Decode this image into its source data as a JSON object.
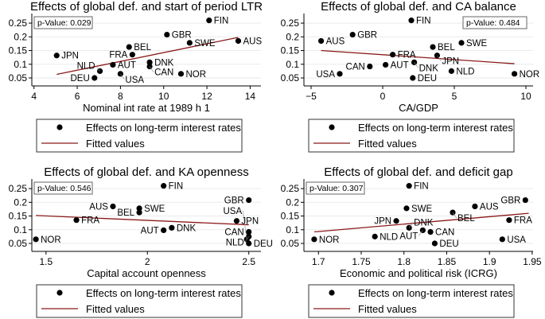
{
  "legend": {
    "points": "Effects on long-term interest rates",
    "line": "Fitted values"
  },
  "colors": {
    "points": "#000000",
    "fit": "#8b1a1a",
    "box": "#666666"
  },
  "chart_data": [
    {
      "type": "scatter",
      "title": "Effects of global def. and start of period LTR",
      "xlabel": "Nominal int rate at 1989 h 1",
      "pvalue": "p-Value: 0.029",
      "pbox": "left",
      "xlim": [
        3.9,
        14.5
      ],
      "xticks": [
        4,
        6,
        8,
        10,
        12,
        14
      ],
      "ylim": [
        0.021,
        0.285
      ],
      "yticks": [
        0.05,
        0.1,
        0.15,
        0.2,
        0.25
      ],
      "points": [
        [
          "FIN",
          12.1,
          0.26
        ],
        [
          "GBR",
          10.15,
          0.208
        ],
        [
          "AUS",
          13.45,
          0.185
        ],
        [
          "SWE",
          11.2,
          0.178
        ],
        [
          "BEL",
          8.4,
          0.163
        ],
        [
          "FRA",
          8.55,
          0.135
        ],
        [
          "JPN",
          5.05,
          0.132
        ],
        [
          "DNK",
          9.35,
          0.107
        ],
        [
          "AUT",
          7.65,
          0.098
        ],
        [
          "CAN",
          9.35,
          0.092
        ],
        [
          "NLD",
          7.05,
          0.075
        ],
        [
          "USA",
          8.0,
          0.065
        ],
        [
          "NOR",
          10.8,
          0.065
        ],
        [
          "DEU",
          6.8,
          0.05
        ]
      ],
      "fit": [
        [
          5.05,
          0.063
        ],
        [
          13.45,
          0.198
        ]
      ]
    },
    {
      "type": "scatter",
      "title": "Effects of global def. and CA balance",
      "xlabel": "CA/GDP",
      "pvalue": "p-Value: 0.484",
      "pbox": "right",
      "xlim": [
        -5.5,
        10.5
      ],
      "xticks": [
        -5,
        0,
        5,
        10
      ],
      "ylim": [
        0.021,
        0.285
      ],
      "yticks": [
        0.05,
        0.1,
        0.15,
        0.2,
        0.25
      ],
      "points": [
        [
          "FIN",
          2.0,
          0.26
        ],
        [
          "GBR",
          -2.1,
          0.208
        ],
        [
          "AUS",
          -4.3,
          0.185
        ],
        [
          "SWE",
          5.5,
          0.178
        ],
        [
          "BEL",
          3.5,
          0.163
        ],
        [
          "FRA",
          0.7,
          0.135
        ],
        [
          "JPN",
          3.8,
          0.132
        ],
        [
          "DNK",
          2.2,
          0.107
        ],
        [
          "AUT",
          0.2,
          0.098
        ],
        [
          "CAN",
          -0.9,
          0.092
        ],
        [
          "NLD",
          4.8,
          0.075
        ],
        [
          "USA",
          -3.0,
          0.065
        ],
        [
          "NOR",
          9.2,
          0.065
        ],
        [
          "DEU",
          2.1,
          0.05
        ]
      ],
      "fit": [
        [
          -4.3,
          0.15
        ],
        [
          9.2,
          0.102
        ]
      ]
    },
    {
      "type": "scatter",
      "title": "Effects of global def. and KA openness",
      "xlabel": "Capital account openness",
      "pvalue": "p-Value: 0.546",
      "pbox": "left",
      "xlim": [
        1.43,
        2.56
      ],
      "xticks": [
        1.5,
        2,
        2.5
      ],
      "ylim": [
        0.021,
        0.285
      ],
      "yticks": [
        0.05,
        0.1,
        0.15,
        0.2,
        0.25
      ],
      "points": [
        [
          "FIN",
          2.08,
          0.26
        ],
        [
          "GBR",
          2.5,
          0.208
        ],
        [
          "AUS",
          1.83,
          0.185
        ],
        [
          "SWE",
          1.96,
          0.178
        ],
        [
          "BEL",
          1.96,
          0.163
        ],
        [
          "FRA",
          1.65,
          0.135
        ],
        [
          "JPN",
          2.44,
          0.132
        ],
        [
          "DNK",
          2.12,
          0.107
        ],
        [
          "AUT",
          2.08,
          0.098
        ],
        [
          "CAN",
          2.5,
          0.092
        ],
        [
          "NLD",
          2.5,
          0.075
        ],
        [
          "USA",
          2.49,
          0.065
        ],
        [
          "NOR",
          1.45,
          0.065
        ],
        [
          "DEU",
          2.5,
          0.05
        ]
      ],
      "fit": [
        [
          1.45,
          0.152
        ],
        [
          2.5,
          0.118
        ]
      ]
    },
    {
      "type": "scatter",
      "title": "Effects of global def. and deficit gap",
      "xlabel": "Economic and political risk (ICRG)",
      "pvalue": "p-Value: 0.307",
      "pbox": "left",
      "xlim": [
        1.683,
        1.951
      ],
      "xticks": [
        1.7,
        1.75,
        1.8,
        1.85,
        1.9,
        1.95
      ],
      "ylim": [
        0.021,
        0.285
      ],
      "yticks": [
        0.05,
        0.1,
        0.15,
        0.2,
        0.25
      ],
      "points": [
        [
          "FIN",
          1.806,
          0.26
        ],
        [
          "GBR",
          1.942,
          0.208
        ],
        [
          "AUS",
          1.883,
          0.185
        ],
        [
          "SWE",
          1.803,
          0.178
        ],
        [
          "BEL",
          1.857,
          0.163
        ],
        [
          "FRA",
          1.923,
          0.135
        ],
        [
          "JPN",
          1.791,
          0.132
        ],
        [
          "DNK",
          1.806,
          0.107
        ],
        [
          "AUT",
          1.822,
          0.098
        ],
        [
          "CAN",
          1.831,
          0.092
        ],
        [
          "NLD",
          1.766,
          0.075
        ],
        [
          "USA",
          1.915,
          0.065
        ],
        [
          "NOR",
          1.695,
          0.065
        ],
        [
          "DEU",
          1.836,
          0.05
        ]
      ],
      "fit": [
        [
          1.695,
          0.092
        ],
        [
          1.946,
          0.16
        ]
      ]
    }
  ]
}
